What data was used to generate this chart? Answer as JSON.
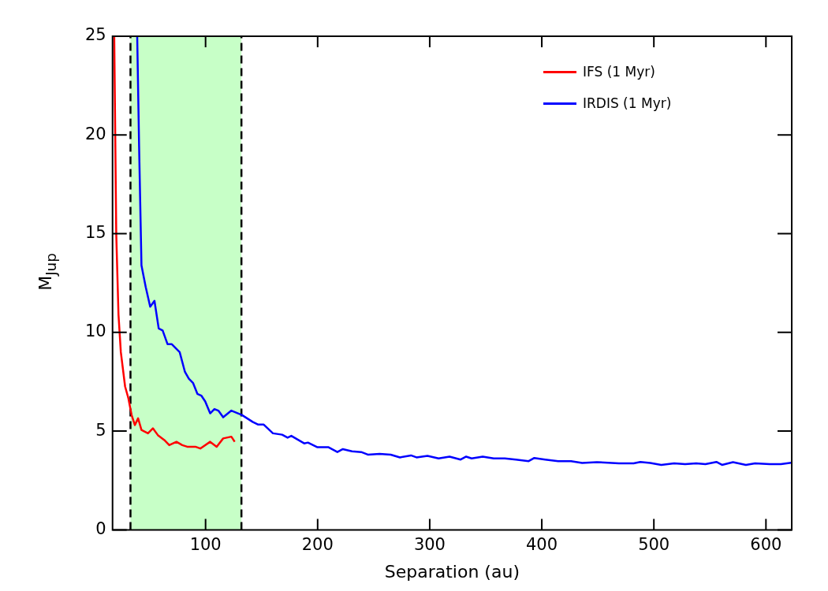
{
  "chart_data": {
    "type": "line",
    "xlabel": "Separation (au)",
    "ylabel": "M$_{Jup}$",
    "xlim": [
      17,
      623
    ],
    "xticks": [
      100,
      200,
      300,
      400,
      500,
      600
    ],
    "ylim": [
      0,
      25
    ],
    "yticks": [
      0,
      5,
      10,
      15,
      20,
      25
    ],
    "grid": false,
    "legend": "top right",
    "marker": "none",
    "line_style": "solid",
    "bands": [
      {
        "axis": "x",
        "from": 33,
        "to": 132,
        "color": "#00ff00"
      }
    ],
    "ref_lines": [
      {
        "axis": "x",
        "value": 33,
        "color": "#000000",
        "line_style": "dashed"
      },
      {
        "axis": "x",
        "value": 132,
        "color": "#000000",
        "line_style": "dashed"
      }
    ],
    "series": [
      {
        "name": "IFS (1 Myr)",
        "color": "#ff0000",
        "x": [
          18.5,
          20.3,
          22.3,
          24.4,
          28.2,
          31.1,
          34.0,
          36.9,
          39.8,
          42.8,
          48.6,
          53.0,
          57.4,
          63.2,
          67.6,
          74.0,
          79.2,
          83.6,
          90.9,
          95.3,
          104.1,
          109.9,
          115.7,
          123.0,
          126.0
        ],
        "values": [
          25,
          15.0,
          10.9,
          9.0,
          7.26,
          6.67,
          5.82,
          5.31,
          5.65,
          5.06,
          4.89,
          5.14,
          4.8,
          4.55,
          4.29,
          4.46,
          4.29,
          4.21,
          4.21,
          4.12,
          4.46,
          4.21,
          4.63,
          4.72,
          4.46
        ]
      },
      {
        "name": "IRDIS (1 Myr)",
        "color": "#0000ff",
        "x": [
          39.0,
          40.7,
          42.8,
          46.6,
          50.6,
          54.4,
          58.2,
          61.7,
          66.1,
          69.9,
          76.9,
          81.6,
          85.1,
          88.9,
          92.7,
          96.2,
          99.7,
          104.1,
          107.9,
          111.4,
          115.7,
          123.0,
          132.4,
          142.0,
          147.0,
          151.9,
          160.1,
          168.3,
          173.2,
          176.5,
          188.0,
          191.3,
          199.5,
          209.4,
          217.6,
          222.5,
          230.7,
          238.9,
          244.8,
          255.3,
          265.2,
          273.4,
          283.3,
          288.2,
          298.0,
          307.9,
          317.7,
          327.6,
          332.5,
          337.4,
          347.3,
          357.1,
          367.0,
          376.9,
          388.3,
          393.3,
          403.1,
          414.6,
          426.1,
          436.0,
          449.1,
          468.8,
          481.9,
          487.9,
          496.7,
          506.6,
          518.1,
          527.9,
          537.8,
          546.0,
          555.8,
          560.8,
          570.6,
          582.1,
          590.3,
          603.4,
          613.3,
          622.5
        ],
        "values": [
          25,
          19.4,
          13.4,
          12.3,
          11.3,
          11.6,
          10.2,
          10.1,
          9.4,
          9.4,
          9.0,
          8.0,
          7.65,
          7.43,
          6.89,
          6.8,
          6.5,
          5.9,
          6.12,
          6.04,
          5.7,
          6.04,
          5.82,
          5.47,
          5.33,
          5.33,
          4.89,
          4.82,
          4.67,
          4.76,
          4.38,
          4.42,
          4.19,
          4.19,
          3.94,
          4.09,
          3.98,
          3.94,
          3.81,
          3.85,
          3.81,
          3.67,
          3.77,
          3.67,
          3.75,
          3.62,
          3.71,
          3.56,
          3.71,
          3.62,
          3.71,
          3.62,
          3.62,
          3.56,
          3.48,
          3.64,
          3.56,
          3.48,
          3.48,
          3.39,
          3.43,
          3.37,
          3.37,
          3.44,
          3.39,
          3.29,
          3.37,
          3.33,
          3.37,
          3.33,
          3.44,
          3.29,
          3.43,
          3.29,
          3.37,
          3.33,
          3.33,
          3.4
        ]
      }
    ]
  }
}
